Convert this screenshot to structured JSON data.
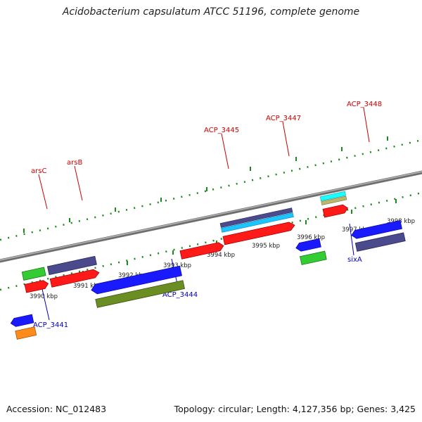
{
  "title": "Acidobacterium capsulatum ATCC 51196, complete genome",
  "footer": {
    "accession": "Accession: NC_012483",
    "summary": "Topology: circular; Length: 4,127,356 bp; Genes: 3,425"
  },
  "axis_labels": [
    "3990 kbp",
    "3991 kbp",
    "3992 kbp",
    "3993 kbp",
    "3994 kbp",
    "3995 kbp",
    "3996 kbp",
    "3997 kbp",
    "3998 kbp"
  ],
  "gene_labels": {
    "forward": [
      "arsC",
      "arsB",
      "ACP_3445",
      "ACP_3447",
      "ACP_3448"
    ],
    "reverse": [
      "ACP_3441",
      "ACP_3444",
      "sixA"
    ]
  },
  "colors": {
    "forward_label": "#cc0000",
    "reverse_label": "#0000bb",
    "backbone": "#8c8c8c",
    "tick": "#1a8a1a",
    "red": "#ff1a1a",
    "blue": "#1a1aff",
    "slate": "#4a4a8c",
    "green": "#33cc33",
    "olive": "#6b8e23",
    "orange": "#ff8c1a",
    "cyan": "#1ac6ff",
    "teal": "#1affc6",
    "tan": "#bdb76b"
  }
}
